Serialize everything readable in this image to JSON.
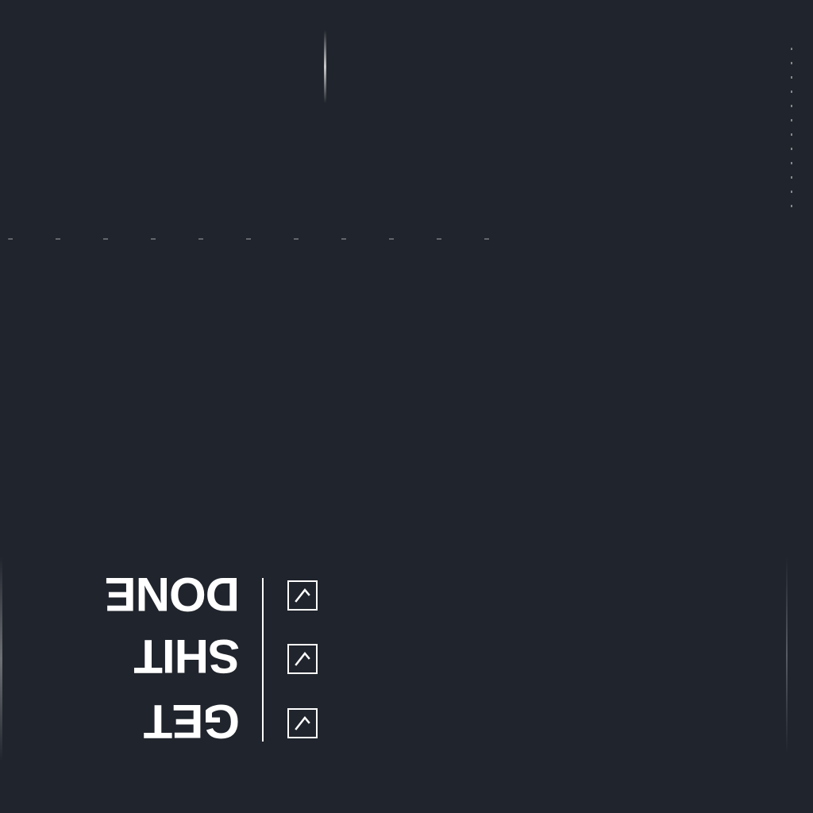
{
  "print": {
    "words": [
      "GET",
      "SHIT",
      "DONE"
    ],
    "checkbox_count": 3,
    "icon": "checkbox-checked-icon",
    "orientation": "upside-down"
  },
  "colors": {
    "background": "#20242c",
    "print": "#ffffff"
  }
}
